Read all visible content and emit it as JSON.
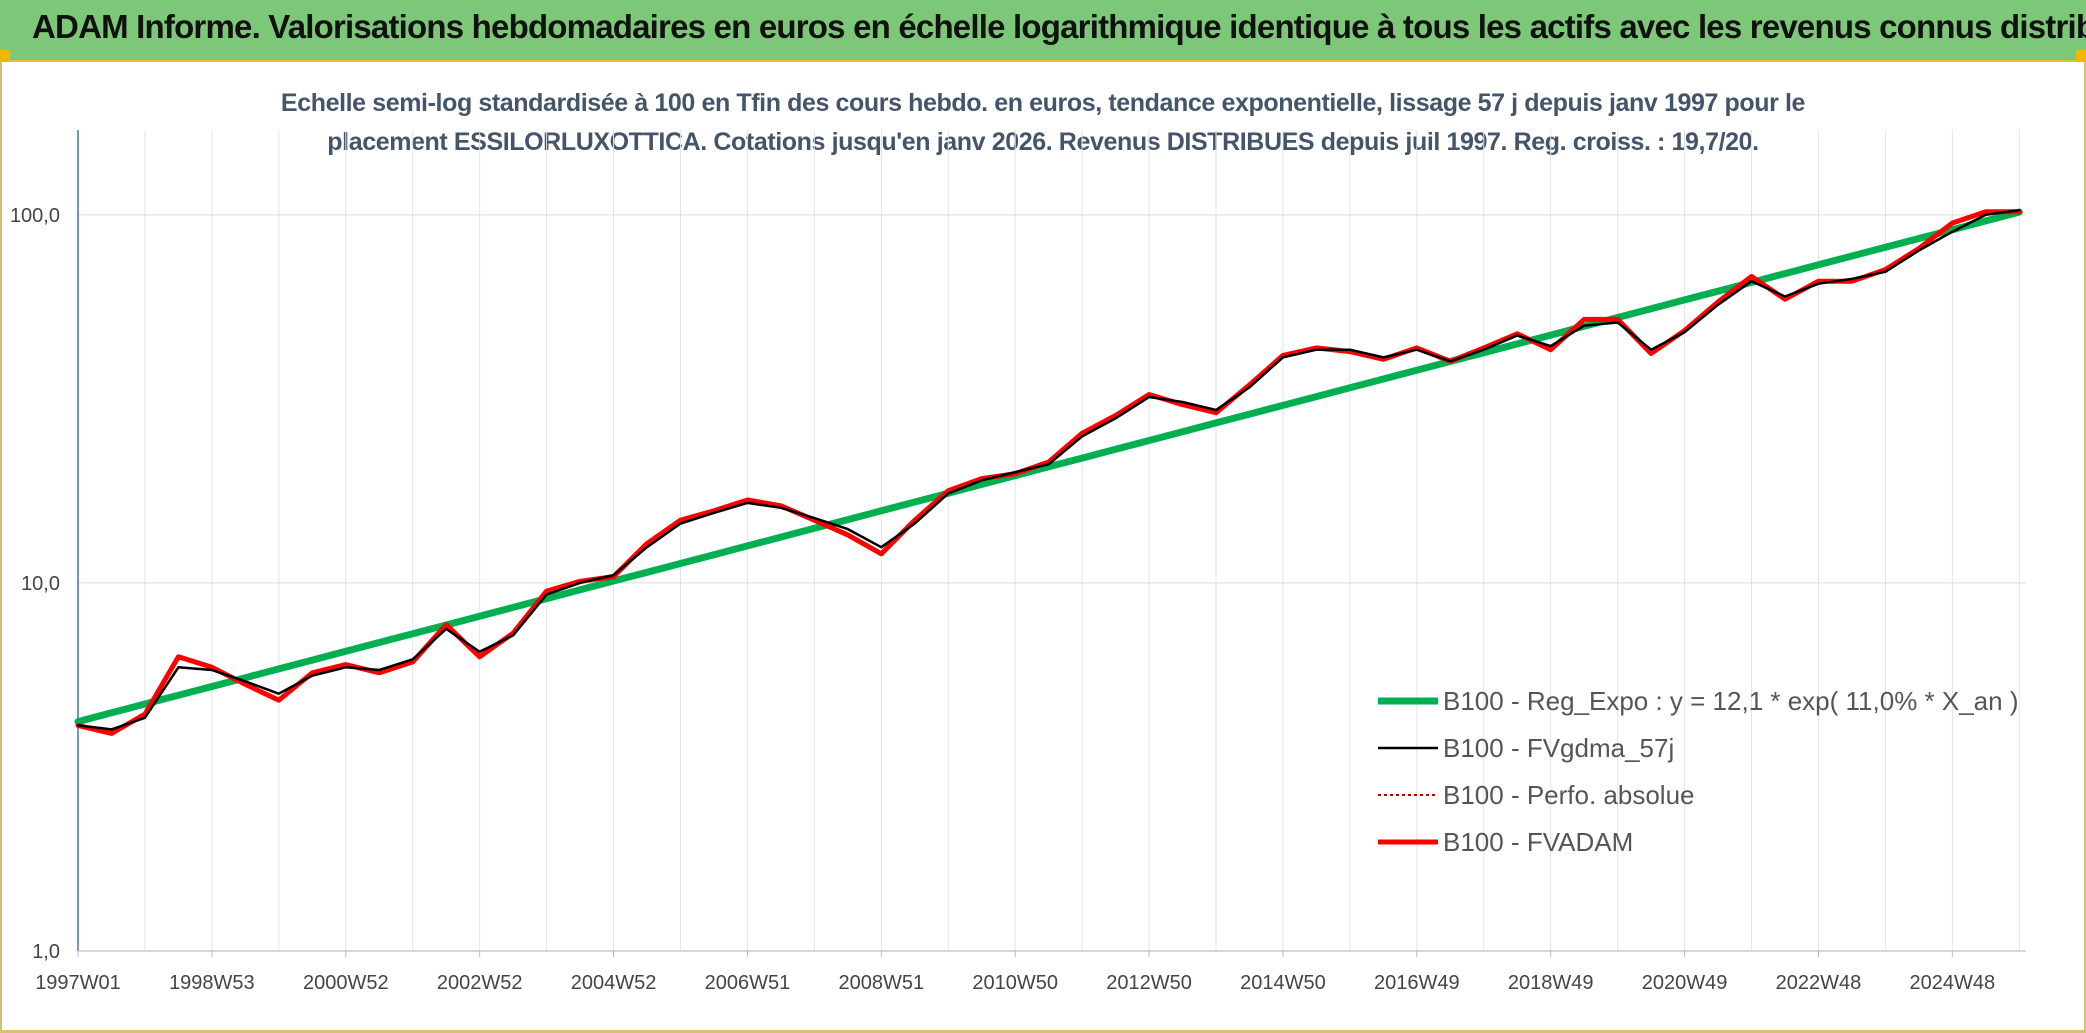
{
  "header": {
    "title": "ADAM Informe. Valorisations hebdomadaires en euros en échelle logarithmique identique à tous les actifs avec les revenus connus distribués"
  },
  "chart_data": {
    "type": "line",
    "title_line1": "Echelle semi-log standardisée à 100 en Tfin des cours hebdo. en euros, tendance exponentielle, lissage 57 j depuis janv 1997 pour le",
    "title_line2": "placement ESSILORLUXOTTICA. Cotations jusqu'en janv 2026. Revenus DISTRIBUES depuis juil 1997. Reg. croiss. : 19,7/20.",
    "y_scale": "log",
    "ylim": [
      1,
      170
    ],
    "y_ticks": [
      {
        "value": 1,
        "label": "1,0"
      },
      {
        "value": 10,
        "label": "10,0"
      },
      {
        "value": 100,
        "label": "100,0"
      }
    ],
    "xlim": [
      1997.0,
      2026.1
    ],
    "x_ticks": [
      {
        "year": 1997.0,
        "label": "1997W01"
      },
      {
        "year": 1999.0,
        "label": "1998W53"
      },
      {
        "year": 2001.0,
        "label": "2000W52"
      },
      {
        "year": 2003.0,
        "label": "2002W52"
      },
      {
        "year": 2005.0,
        "label": "2004W52"
      },
      {
        "year": 2007.0,
        "label": "2006W51"
      },
      {
        "year": 2009.0,
        "label": "2008W51"
      },
      {
        "year": 2011.0,
        "label": "2010W50"
      },
      {
        "year": 2013.0,
        "label": "2012W50"
      },
      {
        "year": 2015.0,
        "label": "2014W50"
      },
      {
        "year": 2017.0,
        "label": "2016W49"
      },
      {
        "year": 2019.0,
        "label": "2018W49"
      },
      {
        "year": 2021.0,
        "label": "2020W49"
      },
      {
        "year": 2023.0,
        "label": "2022W48"
      },
      {
        "year": 2025.0,
        "label": "2024W48"
      }
    ],
    "grid": true,
    "legend_position": "bottom-right",
    "x_points": [
      1997.0,
      1997.5,
      1998.0,
      1998.5,
      1999.0,
      1999.5,
      2000.0,
      2000.5,
      2001.0,
      2001.5,
      2002.0,
      2002.5,
      2003.0,
      2003.5,
      2004.0,
      2004.5,
      2005.0,
      2005.5,
      2006.0,
      2006.5,
      2007.0,
      2007.5,
      2008.0,
      2008.5,
      2009.0,
      2009.5,
      2010.0,
      2010.5,
      2011.0,
      2011.5,
      2012.0,
      2012.5,
      2013.0,
      2013.5,
      2014.0,
      2014.5,
      2015.0,
      2015.5,
      2016.0,
      2016.5,
      2017.0,
      2017.5,
      2018.0,
      2018.5,
      2019.0,
      2019.5,
      2020.0,
      2020.5,
      2021.0,
      2021.5,
      2022.0,
      2022.5,
      2023.0,
      2023.5,
      2024.0,
      2024.5,
      2025.0,
      2025.5,
      2026.0
    ],
    "series": [
      {
        "name": "B100 - Reg_Expo : y = 12,1 * exp( 11,0% *  X_an )",
        "color": "#00b050",
        "style": "thick",
        "trend": {
          "a": 4.2,
          "b": 0.1099,
          "x0": 1997.0
        },
        "values": []
      },
      {
        "name": "B100 - FVgdma_57j",
        "color": "#000000",
        "style": "thin",
        "values": [
          4.1,
          4.0,
          4.3,
          5.9,
          5.8,
          5.4,
          5.0,
          5.6,
          5.9,
          5.8,
          6.2,
          7.5,
          6.5,
          7.2,
          9.3,
          10.0,
          10.5,
          12.5,
          14.5,
          15.5,
          16.5,
          16.0,
          15.0,
          14.0,
          12.5,
          14.5,
          17.5,
          19.0,
          20.0,
          21.0,
          25.0,
          28.0,
          32.0,
          31.0,
          29.5,
          34.0,
          41.0,
          43.0,
          43.0,
          41.0,
          43.0,
          40.0,
          43.0,
          47.0,
          44.0,
          50.0,
          51.0,
          43.0,
          48.0,
          57.0,
          66.0,
          60.0,
          65.0,
          67.0,
          70.0,
          80.0,
          90.0,
          100.0,
          103.0
        ]
      },
      {
        "name": "B100 - Perfo. absolue",
        "color": "#c00000",
        "style": "dotted",
        "values": [
          4.1,
          4.0,
          4.3,
          5.9,
          5.8,
          5.4,
          5.0,
          5.6,
          5.9,
          5.8,
          6.2,
          7.5,
          6.5,
          7.2,
          9.3,
          10.0,
          10.5,
          12.5,
          14.5,
          15.5,
          16.5,
          16.0,
          15.0,
          14.0,
          12.5,
          14.5,
          17.5,
          19.0,
          20.0,
          21.0,
          25.0,
          28.0,
          32.0,
          31.0,
          29.5,
          34.0,
          41.0,
          43.0,
          43.0,
          41.0,
          43.0,
          40.0,
          43.0,
          47.0,
          44.0,
          50.0,
          51.0,
          43.0,
          48.0,
          57.0,
          66.0,
          60.0,
          65.0,
          67.0,
          70.0,
          80.0,
          90.0,
          100.0,
          103.0
        ]
      },
      {
        "name": "B100 - FVADAM",
        "color": "#ff0000",
        "style": "thick",
        "values": [
          4.1,
          3.9,
          4.4,
          6.3,
          5.9,
          5.3,
          4.8,
          5.7,
          6.0,
          5.7,
          6.1,
          7.7,
          6.3,
          7.3,
          9.5,
          10.1,
          10.4,
          12.8,
          14.8,
          15.7,
          16.8,
          16.2,
          14.8,
          13.5,
          12.0,
          14.8,
          17.8,
          19.2,
          19.8,
          21.3,
          25.5,
          28.5,
          32.5,
          30.5,
          29.0,
          34.5,
          41.5,
          43.5,
          42.5,
          40.5,
          43.5,
          40.0,
          43.5,
          47.5,
          43.0,
          52.0,
          52.0,
          42.0,
          48.5,
          58.0,
          68.0,
          59.0,
          66.0,
          66.0,
          71.0,
          81.0,
          95.0,
          102.0,
          102.0
        ]
      }
    ]
  }
}
